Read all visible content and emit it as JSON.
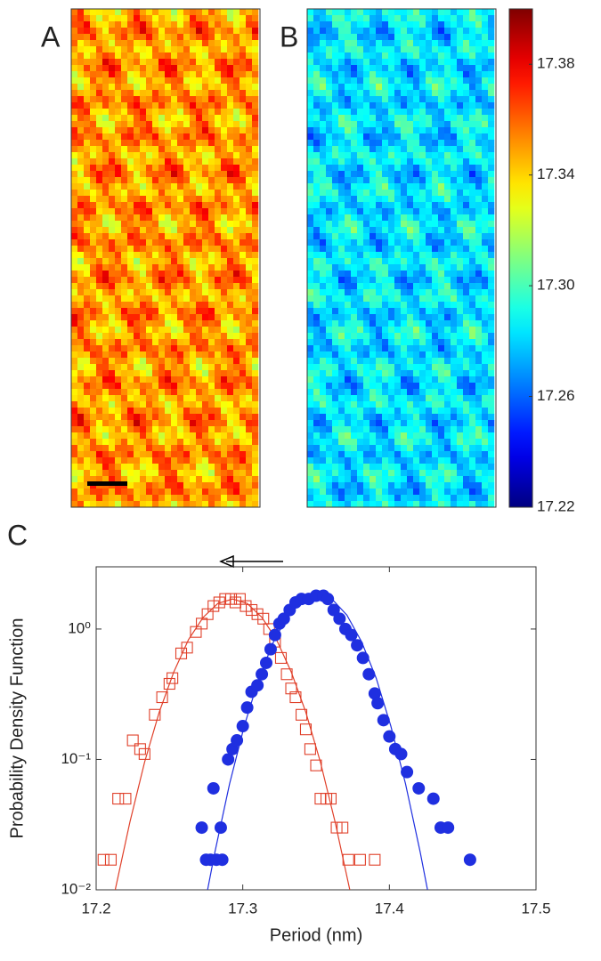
{
  "panel_labels": [
    "A",
    "B",
    "C"
  ],
  "chart_data": [
    {
      "type": "colorbar",
      "colormap": "jet",
      "ylim": [
        17.22,
        17.4
      ],
      "yticks": [
        17.22,
        17.26,
        {
          "value": 17.3,
          "label": "17.30"
        },
        17.34,
        17.38
      ]
    },
    {
      "type": "scatter",
      "xlabel": "Period (nm)",
      "ylabel": "Probability Density Function",
      "xlim": [
        17.2,
        17.5
      ],
      "xticks": [
        17.2,
        17.3,
        17.4,
        17.5
      ],
      "ylim": [
        0.01,
        3
      ],
      "yscale": "log",
      "yticks": [
        {
          "value": 0.01,
          "label": "10⁻²"
        },
        {
          "value": 0.1,
          "label": "10⁻¹"
        },
        {
          "value": 1,
          "label": "10⁰"
        }
      ],
      "series": [
        {
          "color": "#e0402a",
          "marker": "square-open",
          "x": [
            17.205,
            17.21,
            17.215,
            17.22,
            17.225,
            17.23,
            17.233,
            17.24,
            17.245,
            17.25,
            17.252,
            17.258,
            17.262,
            17.268,
            17.272,
            17.276,
            17.28,
            17.284,
            17.288,
            17.292,
            17.295,
            17.298,
            17.302,
            17.306,
            17.31,
            17.314,
            17.318,
            17.322,
            17.326,
            17.33,
            17.333,
            17.336,
            17.34,
            17.343,
            17.346,
            17.35,
            17.353,
            17.357,
            17.36,
            17.364,
            17.368,
            17.372,
            17.38,
            17.39
          ],
          "values": [
            0.017,
            0.017,
            0.05,
            0.05,
            0.14,
            0.12,
            0.11,
            0.22,
            0.3,
            0.38,
            0.42,
            0.65,
            0.72,
            0.95,
            1.1,
            1.3,
            1.5,
            1.6,
            1.7,
            1.7,
            1.6,
            1.7,
            1.5,
            1.4,
            1.3,
            1.2,
            1.0,
            0.8,
            0.6,
            0.45,
            0.35,
            0.3,
            0.22,
            0.17,
            0.12,
            0.09,
            0.05,
            0.05,
            0.05,
            0.03,
            0.03,
            0.017,
            0.017,
            0.017
          ]
        },
        {
          "color": "#1f2fe0",
          "marker": "circle",
          "x": [
            17.272,
            17.275,
            17.278,
            17.282,
            17.286,
            17.28,
            17.285,
            17.29,
            17.293,
            17.296,
            17.3,
            17.303,
            17.306,
            17.31,
            17.313,
            17.316,
            17.319,
            17.322,
            17.325,
            17.328,
            17.332,
            17.336,
            17.34,
            17.345,
            17.35,
            17.355,
            17.358,
            17.362,
            17.366,
            17.37,
            17.374,
            17.378,
            17.382,
            17.386,
            17.39,
            17.392,
            17.396,
            17.4,
            17.404,
            17.408,
            17.412,
            17.42,
            17.43,
            17.435,
            17.44,
            17.455
          ],
          "values": [
            0.03,
            0.017,
            0.017,
            0.017,
            0.017,
            0.06,
            0.03,
            0.1,
            0.12,
            0.14,
            0.18,
            0.25,
            0.33,
            0.37,
            0.45,
            0.55,
            0.7,
            0.9,
            1.1,
            1.2,
            1.4,
            1.6,
            1.7,
            1.7,
            1.8,
            1.8,
            1.7,
            1.4,
            1.2,
            1.0,
            0.9,
            0.75,
            0.6,
            0.45,
            0.32,
            0.27,
            0.2,
            0.15,
            0.12,
            0.11,
            0.08,
            0.06,
            0.05,
            0.03,
            0.03,
            0.017
          ]
        },
        {
          "color": "#e0402a",
          "marker": "line",
          "x": [
            17.213,
            17.223,
            17.233,
            17.243,
            17.253,
            17.263,
            17.273,
            17.283,
            17.293,
            17.303,
            17.313,
            17.323,
            17.333,
            17.343,
            17.353,
            17.363,
            17.373
          ],
          "values": [
            0.01,
            0.033,
            0.095,
            0.23,
            0.47,
            0.83,
            1.23,
            1.57,
            1.7,
            1.57,
            1.23,
            0.83,
            0.47,
            0.23,
            0.095,
            0.033,
            0.01
          ]
        },
        {
          "color": "#1f2fe0",
          "marker": "line",
          "x": [
            17.276,
            17.281,
            17.291,
            17.301,
            17.311,
            17.321,
            17.331,
            17.341,
            17.351,
            17.361,
            17.371,
            17.381,
            17.391,
            17.401,
            17.411,
            17.421,
            17.426
          ],
          "values": [
            0.01,
            0.0195,
            0.065,
            0.18,
            0.42,
            0.8,
            1.28,
            1.69,
            1.85,
            1.69,
            1.28,
            0.8,
            0.42,
            0.18,
            0.065,
            0.0195,
            0.01
          ]
        }
      ]
    }
  ]
}
